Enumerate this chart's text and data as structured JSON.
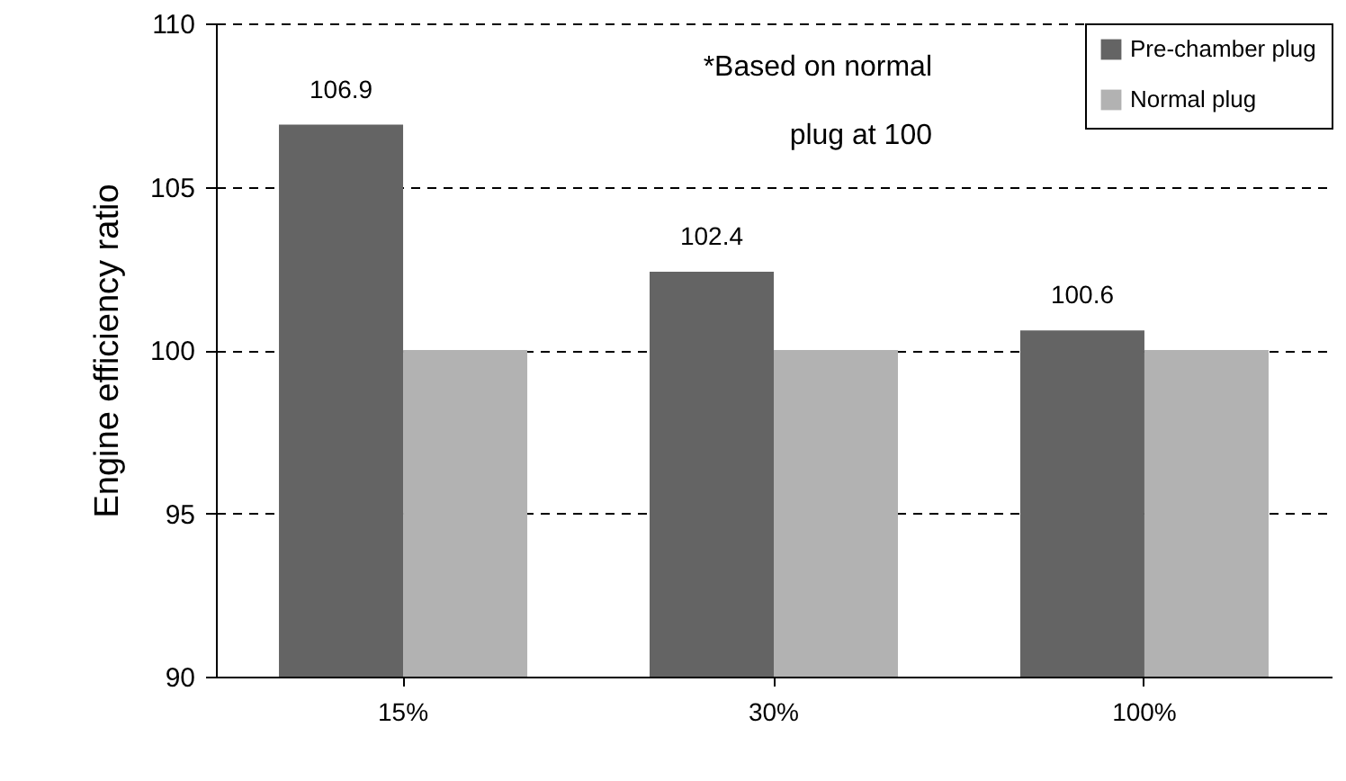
{
  "chart_data": {
    "type": "bar",
    "ylabel": "Engine efficiency ratio",
    "categories": [
      "15%",
      "30%",
      "100%"
    ],
    "series": [
      {
        "name": "Pre-chamber plug",
        "color": "#646464",
        "values": [
          106.9,
          102.4,
          100.6
        ],
        "value_labels": [
          "106.9",
          "102.4",
          "100.6"
        ]
      },
      {
        "name": "Normal plug",
        "color": "#b2b2b2",
        "values": [
          100,
          100,
          100
        ]
      }
    ],
    "ylim": [
      90,
      110
    ],
    "yticks": [
      90,
      95,
      100,
      105,
      110
    ],
    "grid": "y",
    "line_style": "dashed",
    "legend": "top right",
    "annotations": [
      "*Based on normal plug at 100"
    ]
  }
}
